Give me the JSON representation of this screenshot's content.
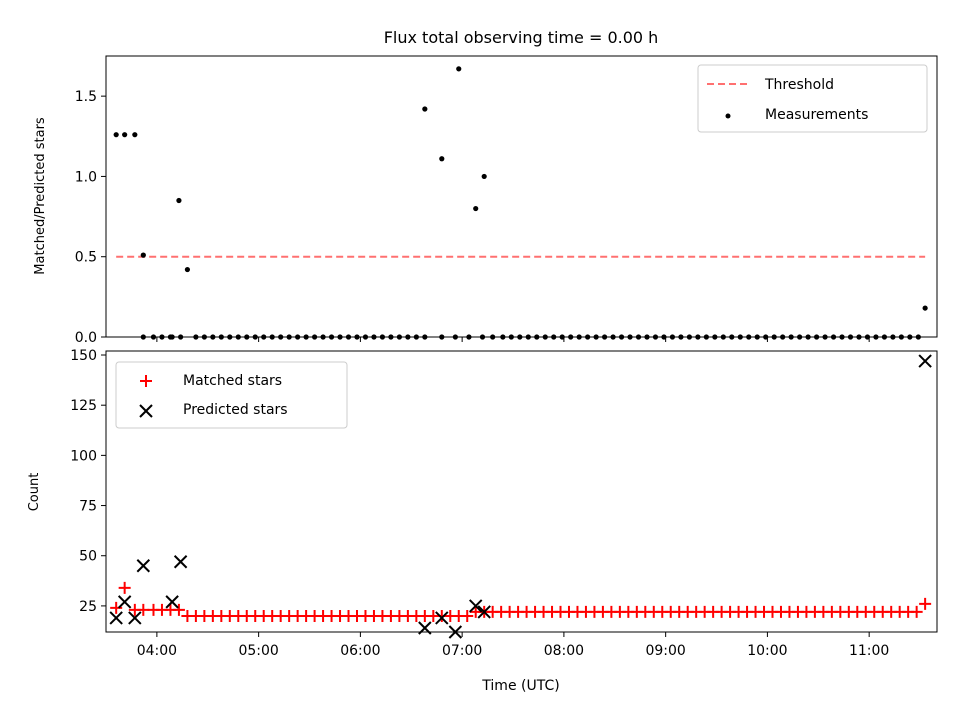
{
  "chart_data": [
    {
      "type": "scatter",
      "title": "Flux total observing time = 0.00 h",
      "xlabel": "",
      "ylabel": "Matched/Predicted stars",
      "xlim": [
        "03:30",
        "11:40"
      ],
      "ylim": [
        0,
        1.75
      ],
      "yticks": [
        0.0,
        0.5,
        1.0,
        1.5
      ],
      "ytick_labels": [
        "0.0",
        "0.5",
        "1.0",
        "1.5"
      ],
      "xticks": [
        "04:00",
        "05:00",
        "06:00",
        "07:00",
        "08:00",
        "09:00",
        "10:00",
        "11:00"
      ],
      "legend_position": "top-right",
      "series": [
        {
          "name": "Threshold",
          "kind": "dashed-line",
          "color": "#ff7070",
          "x": [
            "03:36",
            "11:33"
          ],
          "y": [
            0.5,
            0.5
          ]
        },
        {
          "name": "Measurements",
          "kind": "dot",
          "color": "#000000",
          "x": [
            "03:36",
            "03:41",
            "03:47",
            "03:52",
            "03:58",
            "04:03",
            "04:08",
            "04:13",
            "04:18",
            "04:23",
            "04:28",
            "04:33",
            "04:38",
            "04:43",
            "04:48",
            "04:53",
            "04:58",
            "05:03",
            "05:08",
            "05:13",
            "05:18",
            "05:23",
            "05:28",
            "05:33",
            "05:38",
            "05:43",
            "05:48",
            "05:53",
            "05:58",
            "06:03",
            "06:08",
            "06:13",
            "06:18",
            "06:23",
            "06:28",
            "06:33",
            "06:38",
            "06:48",
            "06:56",
            "07:04",
            "07:12",
            "07:18",
            "07:24",
            "07:29",
            "07:34",
            "07:39",
            "07:44",
            "07:49",
            "07:54",
            "07:59",
            "08:04",
            "08:09",
            "08:14",
            "08:19",
            "08:24",
            "08:29",
            "08:34",
            "08:39",
            "08:44",
            "08:49",
            "08:54",
            "08:59",
            "09:04",
            "09:09",
            "09:14",
            "09:19",
            "09:24",
            "09:29",
            "09:34",
            "09:39",
            "09:44",
            "09:49",
            "09:54",
            "09:59",
            "10:04",
            "10:09",
            "10:14",
            "10:19",
            "10:24",
            "10:29",
            "10:34",
            "10:39",
            "10:44",
            "10:49",
            "10:54",
            "10:59",
            "11:04",
            "11:09",
            "11:14",
            "11:19",
            "11:24",
            "11:29",
            "06:38",
            "06:48",
            "06:58",
            "07:08",
            "07:13",
            "04:09",
            "03:52",
            "04:14",
            "11:33"
          ],
          "y": [
            1.26,
            1.26,
            1.26,
            0.51,
            0,
            0,
            0,
            0.85,
            0.42,
            0,
            0,
            0,
            0,
            0,
            0,
            0,
            0,
            0,
            0,
            0,
            0,
            0,
            0,
            0,
            0,
            0,
            0,
            0,
            0,
            0,
            0,
            0,
            0,
            0,
            0,
            0,
            0,
            0,
            0,
            0,
            0,
            0,
            0,
            0,
            0,
            0,
            0,
            0,
            0,
            0,
            0,
            0,
            0,
            0,
            0,
            0,
            0,
            0,
            0,
            0,
            0,
            0,
            0,
            0,
            0,
            0,
            0,
            0,
            0,
            0,
            0,
            0,
            0,
            0,
            0,
            0,
            0,
            0,
            0,
            0,
            0,
            0,
            0,
            0,
            0,
            0,
            0,
            0,
            0,
            0,
            0,
            0,
            1.42,
            1.11,
            1.67,
            0.8,
            1.0,
            0,
            0,
            0,
            0.18
          ]
        }
      ]
    },
    {
      "type": "scatter",
      "title": "",
      "xlabel": "Time (UTC)",
      "ylabel": "Count",
      "xlim": [
        "03:30",
        "11:40"
      ],
      "ylim": [
        12,
        152
      ],
      "yticks": [
        25,
        50,
        75,
        100,
        125,
        150
      ],
      "ytick_labels": [
        "25",
        "50",
        "75",
        "100",
        "125",
        "150"
      ],
      "xticks": [
        "04:00",
        "05:00",
        "06:00",
        "07:00",
        "08:00",
        "09:00",
        "10:00",
        "11:00"
      ],
      "xtick_labels": [
        "04:00",
        "05:00",
        "06:00",
        "07:00",
        "08:00",
        "09:00",
        "10:00",
        "11:00"
      ],
      "legend_position": "top-left",
      "series": [
        {
          "name": "Matched stars",
          "marker": "+",
          "color": "#ff0000",
          "x": [
            "03:36",
            "03:41",
            "03:47",
            "03:52",
            "03:58",
            "04:03",
            "04:08",
            "04:13",
            "04:18",
            "04:23",
            "04:28",
            "04:33",
            "04:38",
            "04:43",
            "04:48",
            "04:53",
            "04:58",
            "05:03",
            "05:08",
            "05:13",
            "05:18",
            "05:23",
            "05:28",
            "05:33",
            "05:38",
            "05:43",
            "05:48",
            "05:53",
            "05:58",
            "06:03",
            "06:08",
            "06:13",
            "06:18",
            "06:23",
            "06:28",
            "06:33",
            "06:38",
            "06:43",
            "06:48",
            "06:53",
            "06:58",
            "07:03",
            "07:08",
            "07:13",
            "07:18",
            "07:23",
            "07:28",
            "07:33",
            "07:38",
            "07:43",
            "07:48",
            "07:53",
            "07:58",
            "08:03",
            "08:08",
            "08:13",
            "08:18",
            "08:23",
            "08:28",
            "08:33",
            "08:38",
            "08:43",
            "08:48",
            "08:53",
            "08:58",
            "09:03",
            "09:08",
            "09:13",
            "09:18",
            "09:23",
            "09:28",
            "09:33",
            "09:38",
            "09:43",
            "09:48",
            "09:53",
            "09:58",
            "10:03",
            "10:08",
            "10:13",
            "10:18",
            "10:23",
            "10:28",
            "10:33",
            "10:38",
            "10:43",
            "10:48",
            "10:53",
            "10:58",
            "11:03",
            "11:08",
            "11:13",
            "11:18",
            "11:23",
            "11:28",
            "11:33"
          ],
          "y": [
            24,
            34,
            23,
            23,
            23,
            23,
            23,
            23,
            20,
            20,
            20,
            20,
            20,
            20,
            20,
            20,
            20,
            20,
            20,
            20,
            20,
            20,
            20,
            20,
            20,
            20,
            20,
            20,
            20,
            20,
            20,
            20,
            20,
            20,
            20,
            20,
            20,
            20,
            20,
            20,
            20,
            20,
            22,
            22,
            22,
            22,
            22,
            22,
            22,
            22,
            22,
            22,
            22,
            22,
            22,
            22,
            22,
            22,
            22,
            22,
            22,
            22,
            22,
            22,
            22,
            22,
            22,
            22,
            22,
            22,
            22,
            22,
            22,
            22,
            22,
            22,
            22,
            22,
            22,
            22,
            22,
            22,
            22,
            22,
            22,
            22,
            22,
            22,
            22,
            22,
            22,
            22,
            22,
            22,
            22,
            26
          ]
        },
        {
          "name": "Predicted stars",
          "marker": "x",
          "color": "#000000",
          "x": [
            "03:36",
            "03:41",
            "03:47",
            "03:52",
            "04:09",
            "04:14",
            "06:38",
            "06:48",
            "06:56",
            "07:08",
            "07:13",
            "11:33"
          ],
          "y": [
            19,
            27,
            19,
            45,
            27,
            47,
            14,
            19,
            12,
            25,
            22,
            147
          ]
        }
      ]
    }
  ]
}
